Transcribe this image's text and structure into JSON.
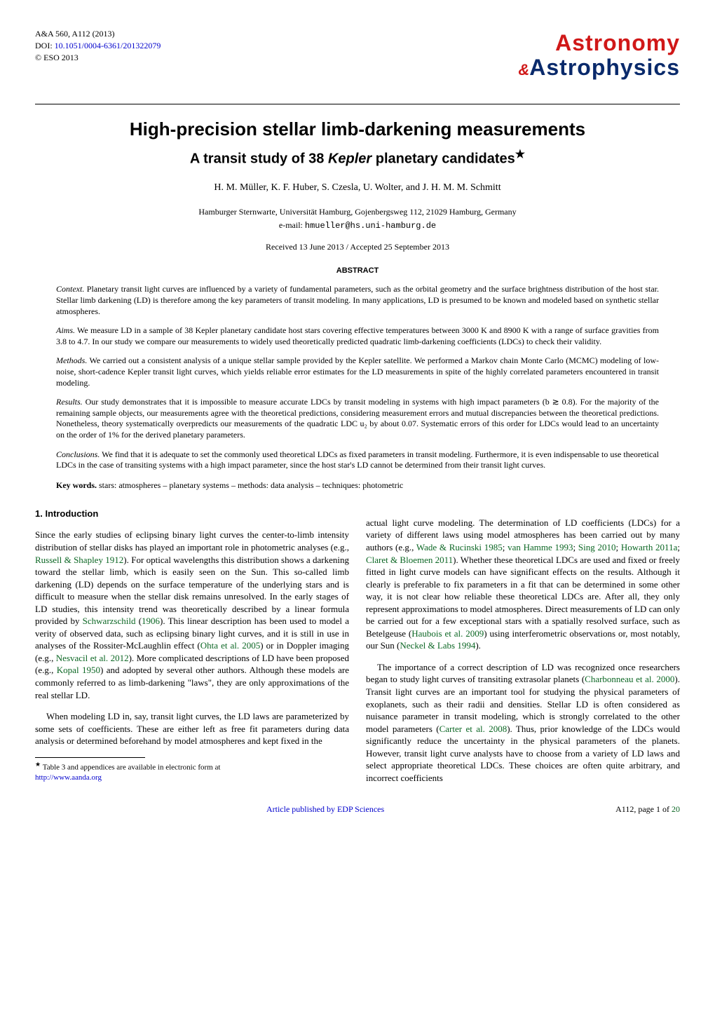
{
  "journal": {
    "ref": "A&A 560, A112 (2013)",
    "doi_label": "DOI: ",
    "doi": "10.1051/0004-6361/201322079",
    "copyright": "© ESO 2013"
  },
  "logo": {
    "line1": "Astronomy",
    "amp": "&",
    "line2": "Astrophysics",
    "color_red": "#d01818",
    "color_blue": "#0a2a6b"
  },
  "title": "High-precision stellar limb-darkening measurements",
  "subtitle_pre": "A transit study of 38 ",
  "subtitle_kepler": "Kepler",
  "subtitle_post": " planetary candidates",
  "subtitle_star": "★",
  "authors": "H. M. Müller, K. F. Huber, S. Czesla, U. Wolter, and J. H. M. M. Schmitt",
  "affiliation": "Hamburger Sternwarte, Universität Hamburg, Gojenbergsweg 112, 21029 Hamburg, Germany",
  "email_label": "e-mail: ",
  "email": "hmueller@hs.uni-hamburg.de",
  "dates": "Received 13 June 2013 / Accepted 25 September 2013",
  "abstract_heading": "ABSTRACT",
  "abstract": {
    "context_label": "Context.",
    "context": " Planetary transit light curves are influenced by a variety of fundamental parameters, such as the orbital geometry and the surface brightness distribution of the host star. Stellar limb darkening (LD) is therefore among the key parameters of transit modeling. In many applications, LD is presumed to be known and modeled based on synthetic stellar atmospheres.",
    "aims_label": "Aims.",
    "aims": " We measure LD in a sample of 38 Kepler planetary candidate host stars covering effective temperatures between 3000 K and 8900 K with a range of surface gravities from 3.8 to 4.7. In our study we compare our measurements to widely used theoretically predicted quadratic limb-darkening coefficients (LDCs) to check their validity.",
    "methods_label": "Methods.",
    "methods": " We carried out a consistent analysis of a unique stellar sample provided by the Kepler satellite. We performed a Markov chain Monte Carlo (MCMC) modeling of low-noise, short-cadence Kepler transit light curves, which yields reliable error estimates for the LD measurements in spite of the highly correlated parameters encountered in transit modeling.",
    "results_label": "Results.",
    "results": " Our study demonstrates that it is impossible to measure accurate LDCs by transit modeling in systems with high impact parameters (b ≳ 0.8). For the majority of the remaining sample objects, our measurements agree with the theoretical predictions, considering measurement errors and mutual discrepancies between the theoretical predictions. Nonetheless, theory systematically overpredicts our measurements of the quadratic LDC u₂ by about 0.07. Systematic errors of this order for LDCs would lead to an uncertainty on the order of 1% for the derived planetary parameters.",
    "conclusions_label": "Conclusions.",
    "conclusions": " We find that it is adequate to set the commonly used theoretical LDCs as fixed parameters in transit modeling. Furthermore, it is even indispensable to use theoretical LDCs in the case of transiting systems with a high impact parameter, since the host star's LD cannot be determined from their transit light curves."
  },
  "keywords_label": "Key words.",
  "keywords": " stars: atmospheres – planetary systems – methods: data analysis – techniques: photometric",
  "section1_heading": "1. Introduction",
  "col_left_p1a": "Since the early studies of eclipsing binary light curves the center-to-limb intensity distribution of stellar disks has played an important role in photometric analyses (e.g., ",
  "col_left_c1": "Russell & Shapley 1912",
  "col_left_p1b": "). For optical wavelengths this distribution shows a darkening toward the stellar limb, which is easily seen on the Sun. This so-called limb darkening (LD) depends on the surface temperature of the underlying stars and is difficult to measure when the stellar disk remains unresolved. In the early stages of LD studies, this intensity trend was theoretically described by a linear formula provided by ",
  "col_left_c2": "Schwarzschild",
  "col_left_p1c": " (",
  "col_left_c2y": "1906",
  "col_left_p1d": "). This linear description has been used to model a verity of observed data, such as eclipsing binary light curves, and it is still in use in analyses of the Rossiter-McLaughlin effect (",
  "col_left_c3": "Ohta et al. 2005",
  "col_left_p1e": ") or in Doppler imaging (e.g., ",
  "col_left_c4": "Nesvacil et al. 2012",
  "col_left_p1f": "). More complicated descriptions of LD have been proposed (e.g., ",
  "col_left_c5": "Kopal 1950",
  "col_left_p1g": ") and adopted by several other authors. Although these models are commonly referred to as limb-darkening \"laws\", they are only approximations of the real stellar LD.",
  "col_left_p2": "When modeling LD in, say, transit light curves, the LD laws are parameterized by some sets of coefficients. These are either left as free fit parameters during data analysis or determined beforehand by model atmospheres and kept fixed in the",
  "footnote_star": "★",
  "footnote_text": " Table 3 and appendices are available in electronic form at",
  "footnote_url": "http://www.aanda.org",
  "col_right_p1a": "actual light curve modeling. The determination of LD coefficients (LDCs) for a variety of different laws using model atmospheres has been carried out by many authors (e.g., ",
  "col_right_c1": "Wade & Rucinski 1985",
  "col_right_p1b": "; ",
  "col_right_c2": "van Hamme 1993",
  "col_right_p1c": "; ",
  "col_right_c3": "Sing 2010",
  "col_right_p1d": "; ",
  "col_right_c4": "Howarth 2011a",
  "col_right_p1e": "; ",
  "col_right_c5": "Claret & Bloemen 2011",
  "col_right_p1f": "). Whether these theoretical LDCs are used and fixed or freely fitted in light curve models can have significant effects on the results. Although it clearly is preferable to fix parameters in a fit that can be determined in some other way, it is not clear how reliable these theoretical LDCs are. After all, they only represent approximations to model atmospheres. Direct measurements of LD can only be carried out for a few exceptional stars with a spatially resolved surface, such as Betelgeuse (",
  "col_right_c6": "Haubois et al. 2009",
  "col_right_p1g": ") using interferometric observations or, most notably, our Sun (",
  "col_right_c7": "Neckel & Labs 1994",
  "col_right_p1h": ").",
  "col_right_p2a": "The importance of a correct description of LD was recognized once researchers began to study light curves of transiting extrasolar planets (",
  "col_right_c8": "Charbonneau et al. 2000",
  "col_right_p2b": "). Transit light curves are an important tool for studying the physical parameters of exoplanets, such as their radii and densities. Stellar LD is often considered as nuisance parameter in transit modeling, which is strongly correlated to the other model parameters (",
  "col_right_c9": "Carter et al. 2008",
  "col_right_p2c": "). Thus, prior knowledge of the LDCs would significantly reduce the uncertainty in the physical parameters of the planets. However, transit light curve analysts have to choose from a variety of LD laws and select appropriate theoretical LDCs. These choices are often quite arbitrary, and incorrect coefficients",
  "footer_pub": "Article published by EDP Sciences",
  "footer_page": "A112, page 1 of ",
  "footer_total": "20"
}
